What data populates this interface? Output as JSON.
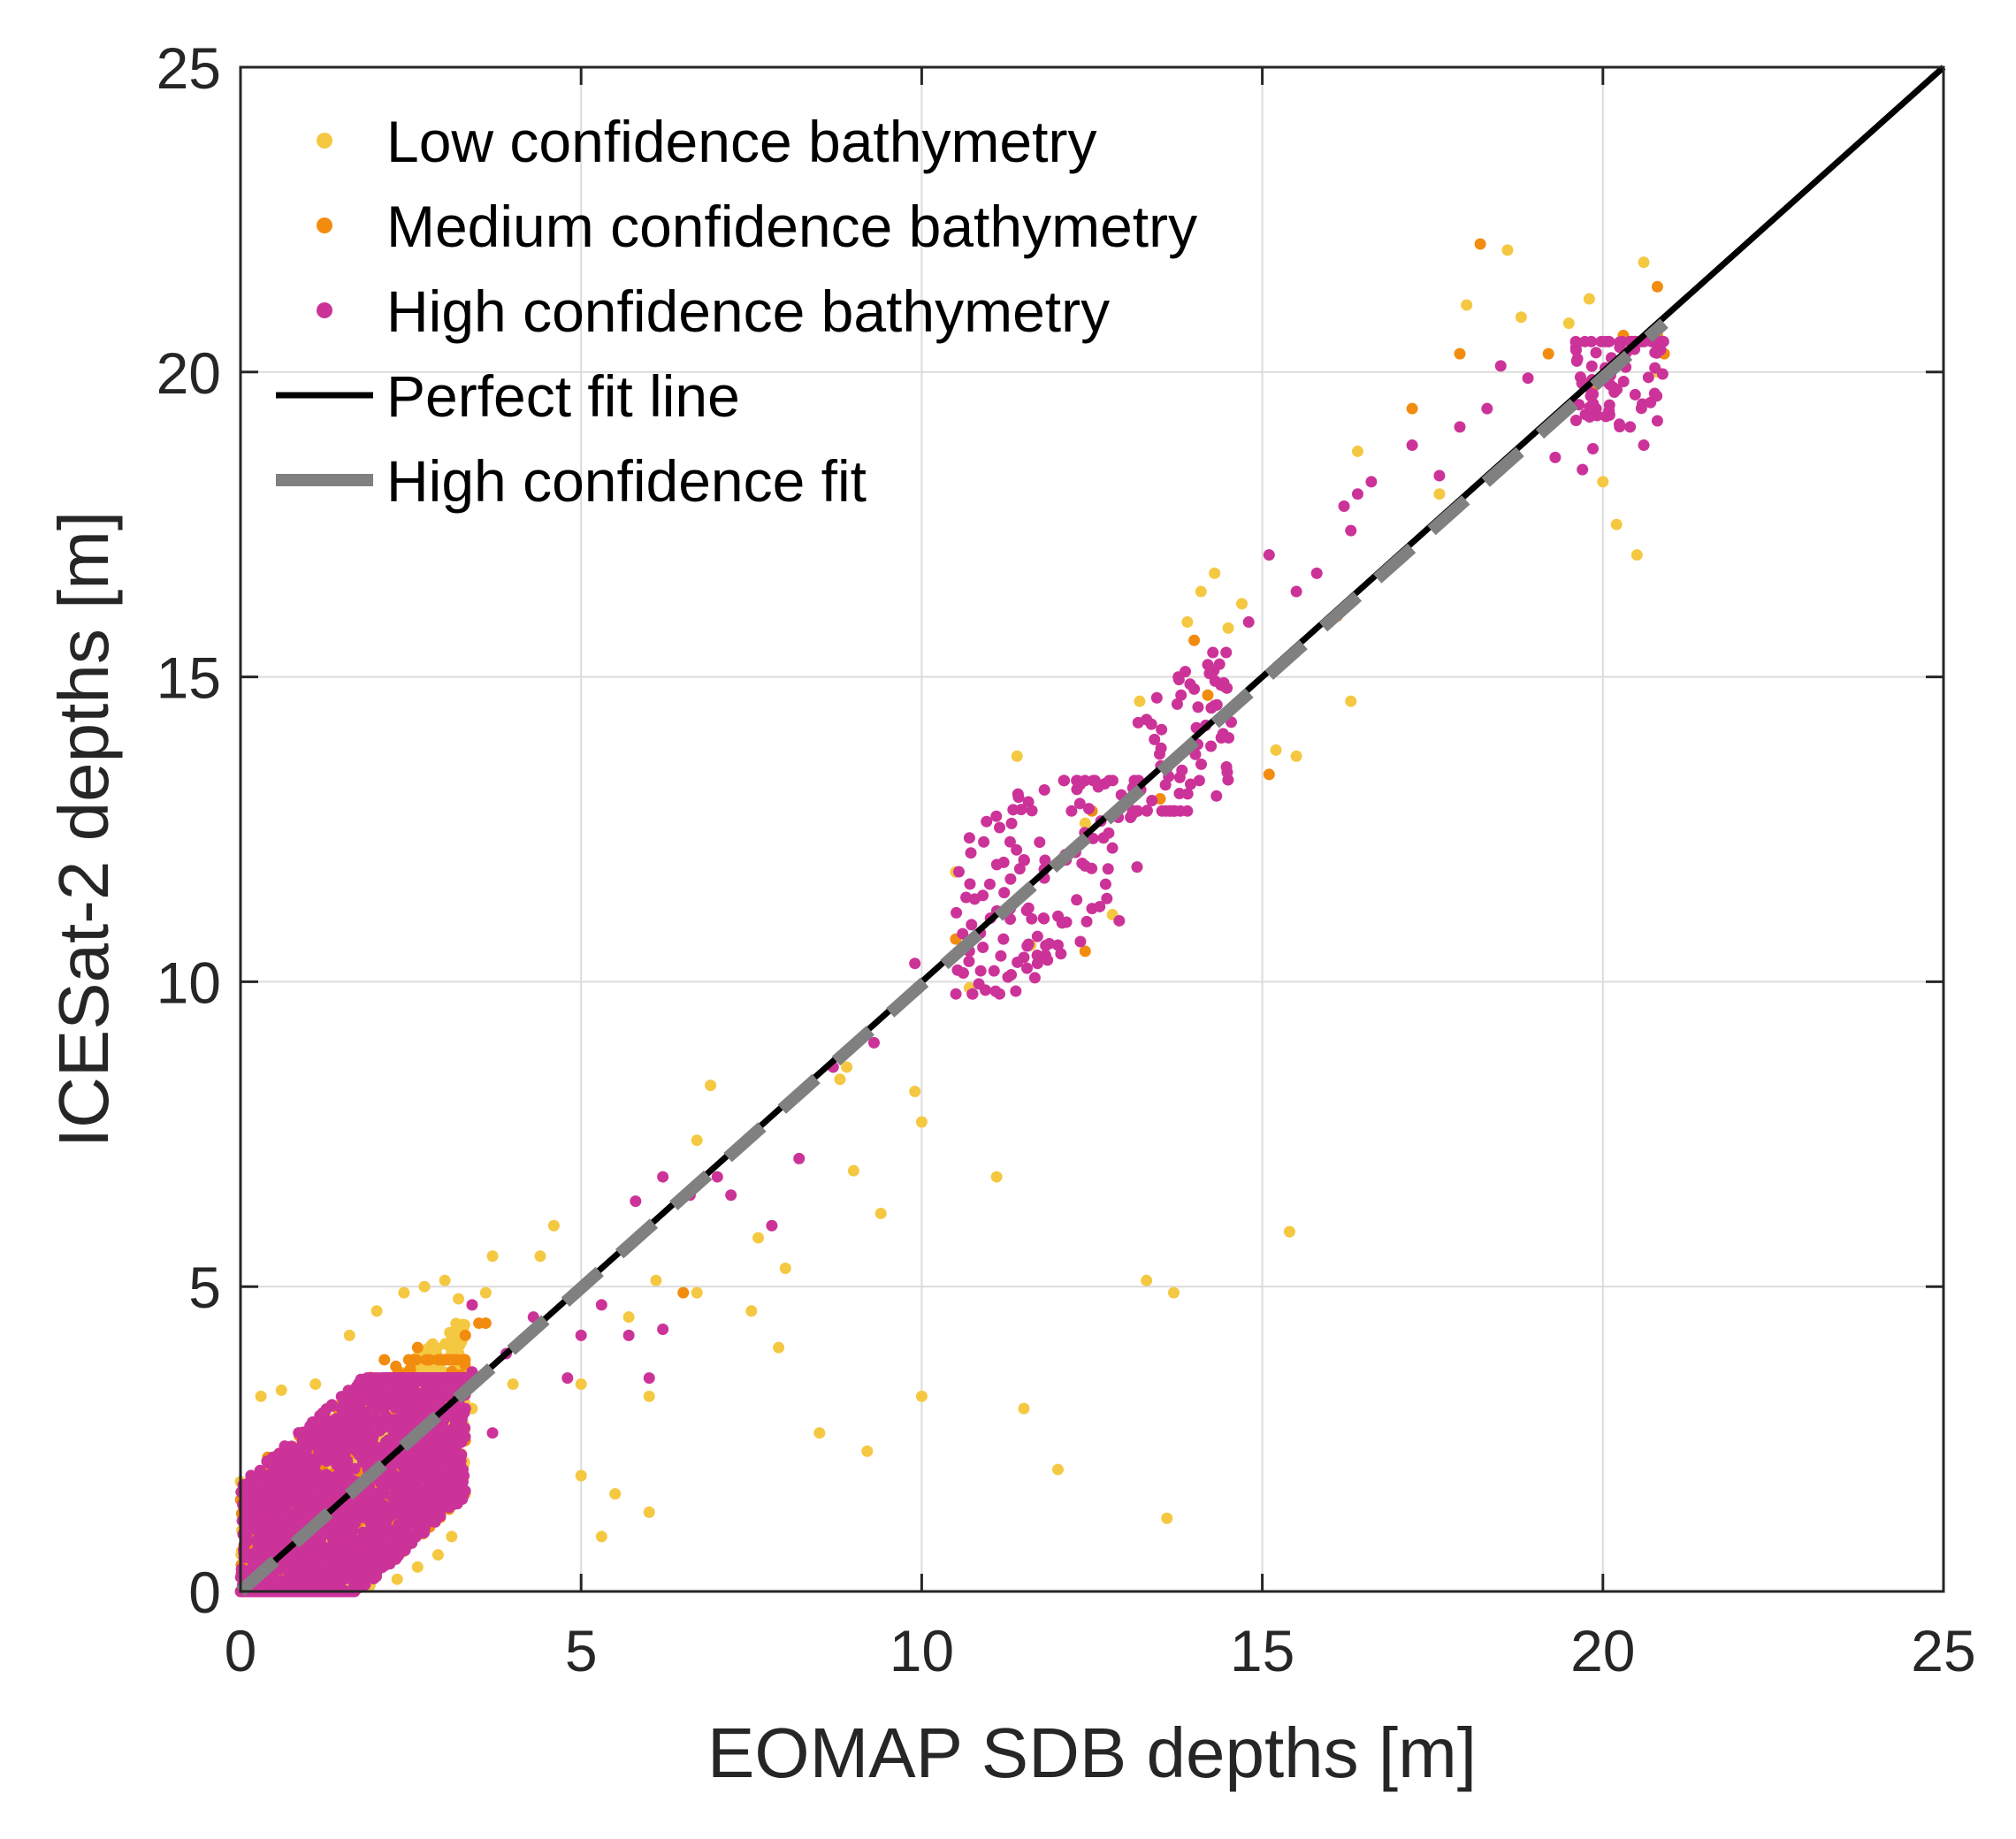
{
  "chart_data": {
    "type": "scatter",
    "title": "",
    "xlabel": "EOMAP SDB depths [m]",
    "ylabel": "ICESat-2 depths [m]",
    "xlim": [
      0,
      25
    ],
    "ylim": [
      0,
      25
    ],
    "xticks": [
      0,
      5,
      10,
      15,
      20,
      25
    ],
    "yticks": [
      0,
      5,
      10,
      15,
      20,
      25
    ],
    "xtick_labels": [
      "0",
      "5",
      "10",
      "15",
      "20",
      "25"
    ],
    "ytick_labels": [
      "0",
      "5",
      "10",
      "15",
      "20",
      "25"
    ],
    "grid": true,
    "legend_position": "top-left",
    "series": [
      {
        "name": "Low confidence bathymetry",
        "kind": "points",
        "color": "#F5C842",
        "points": [
          [
            0.3,
            3.2
          ],
          [
            0.6,
            3.3
          ],
          [
            1.1,
            3.4
          ],
          [
            1.6,
            4.2
          ],
          [
            2.0,
            4.6
          ],
          [
            2.4,
            4.9
          ],
          [
            2.7,
            5.0
          ],
          [
            3.0,
            5.1
          ],
          [
            3.2,
            4.8
          ],
          [
            3.4,
            3.0
          ],
          [
            3.3,
            1.6
          ],
          [
            3.1,
            0.9
          ],
          [
            2.9,
            0.6
          ],
          [
            2.6,
            0.4
          ],
          [
            2.3,
            0.2
          ],
          [
            1.9,
            0.1
          ],
          [
            1.5,
            0.05
          ],
          [
            1.0,
            0.05
          ],
          [
            0.5,
            0.1
          ],
          [
            0.1,
            0.4
          ],
          [
            0.0,
            1.8
          ],
          [
            3.6,
            4.9
          ],
          [
            3.7,
            5.5
          ],
          [
            4.0,
            3.4
          ],
          [
            4.4,
            5.5
          ],
          [
            4.6,
            6.0
          ],
          [
            5.0,
            3.4
          ],
          [
            5.0,
            1.9
          ],
          [
            5.3,
            0.9
          ],
          [
            5.5,
            1.6
          ],
          [
            5.7,
            4.5
          ],
          [
            6.0,
            3.2
          ],
          [
            6.0,
            1.3
          ],
          [
            6.1,
            5.1
          ],
          [
            6.7,
            4.9
          ],
          [
            6.7,
            7.4
          ],
          [
            6.9,
            8.3
          ],
          [
            7.5,
            4.6
          ],
          [
            7.6,
            5.8
          ],
          [
            7.9,
            4.0
          ],
          [
            8.0,
            5.3
          ],
          [
            8.5,
            2.6
          ],
          [
            8.8,
            8.4
          ],
          [
            8.9,
            8.6
          ],
          [
            9.0,
            6.9
          ],
          [
            9.2,
            2.3
          ],
          [
            9.4,
            6.2
          ],
          [
            9.9,
            8.2
          ],
          [
            10.0,
            3.2
          ],
          [
            10.0,
            7.7
          ],
          [
            10.5,
            11.8
          ],
          [
            10.7,
            9.9
          ],
          [
            11.1,
            6.8
          ],
          [
            11.4,
            13.7
          ],
          [
            11.5,
            3.0
          ],
          [
            11.6,
            10.6
          ],
          [
            12.0,
            2.0
          ],
          [
            12.4,
            12.6
          ],
          [
            12.8,
            11.1
          ],
          [
            13.2,
            14.6
          ],
          [
            13.3,
            5.1
          ],
          [
            13.6,
            1.2
          ],
          [
            13.7,
            4.9
          ],
          [
            13.9,
            15.9
          ],
          [
            14.1,
            16.4
          ],
          [
            14.3,
            16.7
          ],
          [
            14.5,
            15.8
          ],
          [
            14.7,
            16.2
          ],
          [
            15.2,
            13.8
          ],
          [
            15.4,
            5.9
          ],
          [
            15.5,
            13.7
          ],
          [
            16.3,
            14.6
          ],
          [
            16.4,
            18.7
          ],
          [
            17.6,
            18.0
          ],
          [
            18.0,
            21.1
          ],
          [
            18.6,
            22.0
          ],
          [
            18.8,
            20.9
          ],
          [
            19.5,
            20.8
          ],
          [
            19.8,
            21.2
          ],
          [
            20.0,
            18.2
          ],
          [
            20.2,
            17.5
          ],
          [
            20.5,
            17.0
          ],
          [
            20.6,
            21.8
          ],
          [
            20.8,
            20.0
          ]
        ],
        "clusters": [
          {
            "x": [
              0.0,
              3.3
            ],
            "y": [
              0.0,
              3.3
            ],
            "count": 1500
          },
          {
            "x": [
              1.4,
              3.3
            ],
            "y": [
              2.5,
              5.0
            ],
            "count": 650
          }
        ]
      },
      {
        "name": "Medium confidence bathymetry",
        "kind": "points",
        "color": "#F28C0F",
        "points": [
          [
            0.4,
            2.2
          ],
          [
            1.2,
            2.0
          ],
          [
            2.0,
            3.5
          ],
          [
            2.6,
            4.0
          ],
          [
            3.0,
            3.8
          ],
          [
            3.3,
            4.2
          ],
          [
            3.5,
            4.4
          ],
          [
            3.6,
            4.4
          ],
          [
            6.5,
            4.9
          ],
          [
            10.5,
            10.7
          ],
          [
            12.4,
            10.5
          ],
          [
            12.5,
            12.8
          ],
          [
            13.5,
            13.0
          ],
          [
            14.0,
            15.6
          ],
          [
            14.2,
            14.7
          ],
          [
            15.1,
            13.4
          ],
          [
            16.1,
            16.0
          ],
          [
            17.2,
            19.4
          ],
          [
            17.9,
            20.3
          ],
          [
            18.2,
            22.1
          ],
          [
            19.2,
            20.3
          ],
          [
            19.9,
            19.8
          ],
          [
            20.3,
            20.6
          ],
          [
            20.8,
            21.4
          ],
          [
            20.8,
            20.6
          ],
          [
            20.9,
            20.3
          ]
        ],
        "clusters": [
          {
            "x": [
              0.0,
              3.3
            ],
            "y": [
              0.3,
              3.8
            ],
            "count": 350
          }
        ]
      },
      {
        "name": "High confidence bathymetry",
        "kind": "points",
        "color": "#CC3399",
        "points": [
          [
            3.3,
            3.0
          ],
          [
            3.4,
            3.6
          ],
          [
            3.4,
            4.7
          ],
          [
            3.7,
            2.6
          ],
          [
            3.9,
            3.9
          ],
          [
            4.3,
            4.5
          ],
          [
            4.8,
            3.5
          ],
          [
            5.0,
            4.2
          ],
          [
            5.3,
            4.7
          ],
          [
            5.7,
            4.2
          ],
          [
            5.8,
            6.4
          ],
          [
            6.0,
            3.5
          ],
          [
            6.2,
            4.3
          ],
          [
            6.2,
            6.8
          ],
          [
            6.6,
            6.5
          ],
          [
            7.0,
            6.8
          ],
          [
            7.2,
            6.5
          ],
          [
            7.8,
            6.0
          ],
          [
            8.2,
            7.1
          ],
          [
            8.7,
            8.6
          ],
          [
            9.3,
            9.0
          ],
          [
            9.9,
            10.3
          ],
          [
            10.7,
            10.5
          ],
          [
            11.0,
            11.6
          ],
          [
            11.2,
            10.7
          ],
          [
            11.3,
            11.2
          ],
          [
            11.5,
            12.0
          ],
          [
            11.7,
            10.3
          ],
          [
            11.8,
            11.7
          ],
          [
            12.0,
            10.6
          ],
          [
            12.2,
            12.8
          ],
          [
            12.4,
            11.9
          ],
          [
            12.5,
            11.2
          ],
          [
            12.7,
            11.6
          ],
          [
            12.9,
            11.0
          ],
          [
            13.1,
            12.8
          ],
          [
            13.3,
            14.3
          ],
          [
            13.6,
            13.5
          ],
          [
            13.9,
            12.8
          ],
          [
            14.0,
            14.8
          ],
          [
            14.2,
            15.2
          ],
          [
            14.4,
            14.0
          ],
          [
            14.8,
            15.9
          ],
          [
            15.1,
            17.0
          ],
          [
            15.5,
            16.4
          ],
          [
            15.8,
            16.7
          ],
          [
            16.3,
            17.4
          ],
          [
            16.4,
            18.0
          ],
          [
            16.6,
            18.2
          ],
          [
            16.2,
            17.8
          ],
          [
            17.2,
            18.8
          ],
          [
            17.6,
            18.3
          ],
          [
            17.9,
            19.1
          ],
          [
            18.3,
            19.4
          ],
          [
            18.5,
            20.1
          ],
          [
            18.9,
            19.9
          ],
          [
            19.3,
            18.6
          ],
          [
            19.7,
            18.4
          ],
          [
            19.9,
            19.4
          ],
          [
            20.1,
            19.8
          ],
          [
            20.3,
            20.2
          ],
          [
            20.4,
            19.1
          ],
          [
            20.6,
            18.8
          ],
          [
            20.7,
            19.5
          ],
          [
            20.8,
            19.2
          ]
        ],
        "clusters": [
          {
            "x": [
              0.0,
              3.3
            ],
            "y": [
              0.0,
              3.5
            ],
            "count": 2200
          },
          {
            "x": [
              10.5,
              13.2
            ],
            "y": [
              9.8,
              13.3
            ],
            "count": 120
          },
          {
            "x": [
              13.1,
              14.6
            ],
            "y": [
              12.8,
              15.4
            ],
            "count": 70
          },
          {
            "x": [
              19.6,
              20.9
            ],
            "y": [
              18.1,
              20.5
            ],
            "count": 80
          }
        ]
      },
      {
        "name": "Perfect fit line",
        "kind": "line",
        "color": "#000000",
        "x": [
          0,
          25
        ],
        "y": [
          0,
          25
        ]
      },
      {
        "name": "High confidence fit",
        "kind": "line",
        "color": "#808080",
        "dashed": true,
        "x": [
          0,
          20.9
        ],
        "y": [
          0,
          20.8
        ]
      }
    ]
  }
}
